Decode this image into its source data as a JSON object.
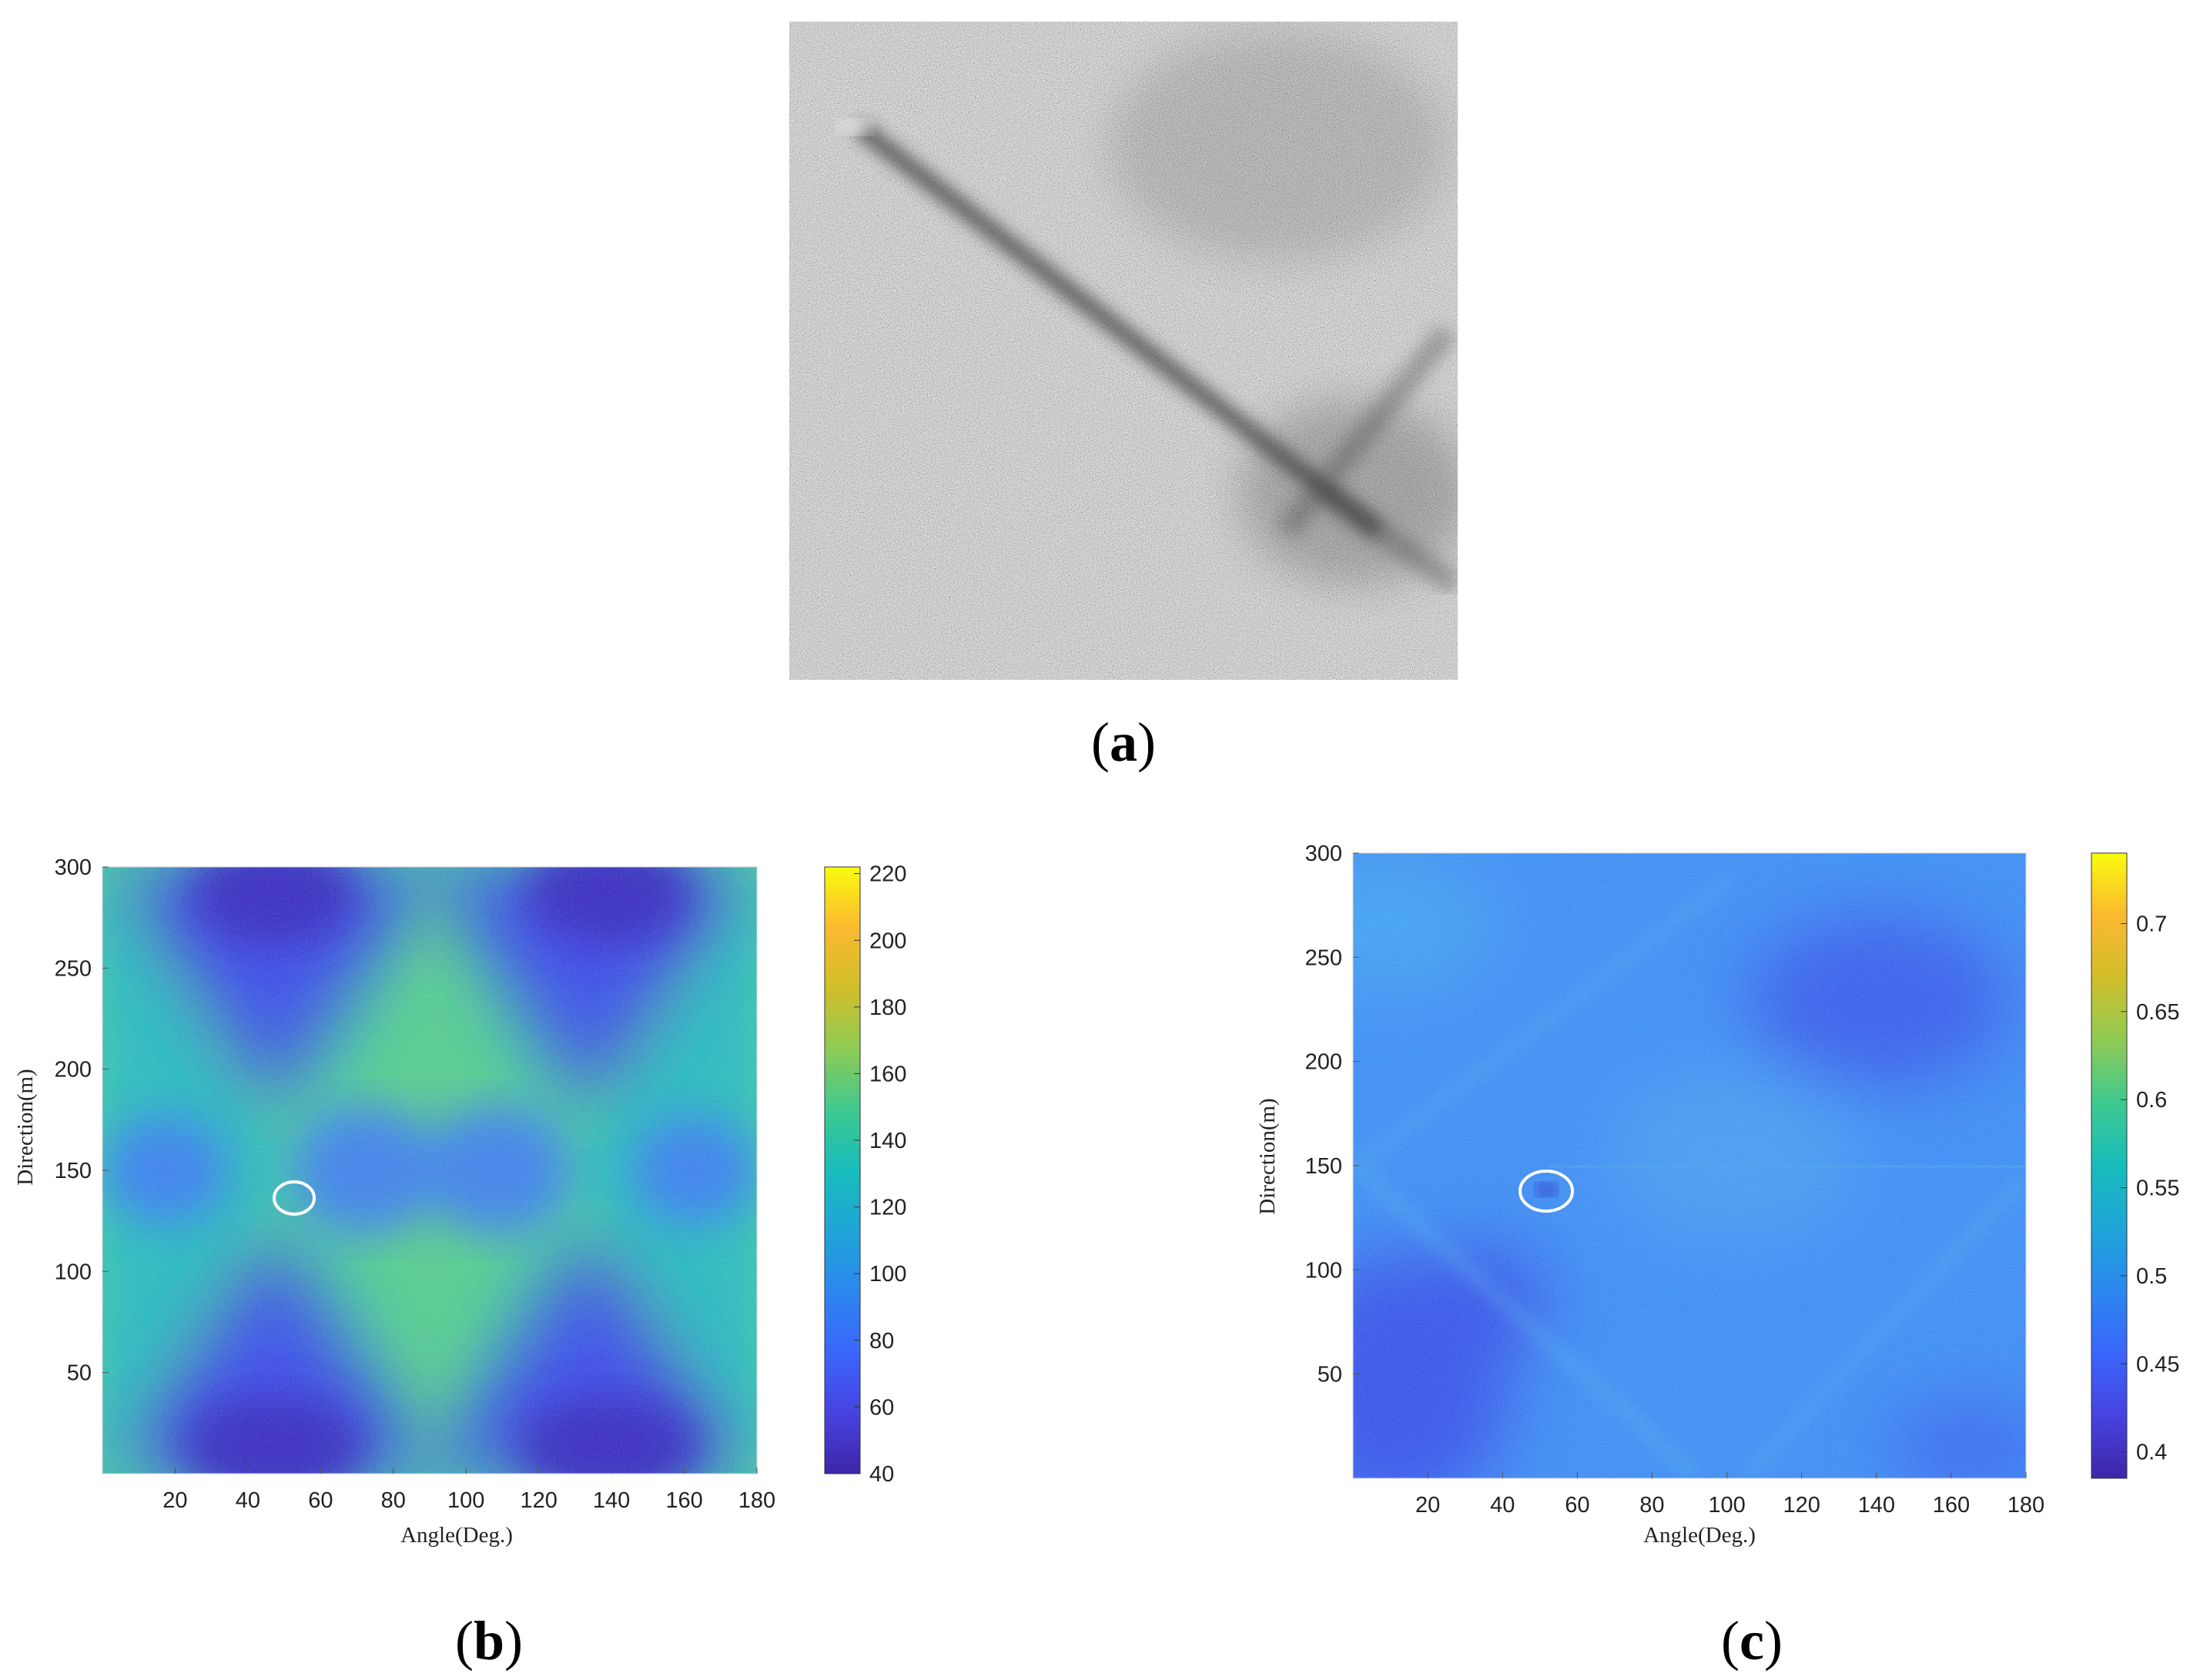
{
  "panels": {
    "a": {
      "label_open": "(",
      "label_letter": "a",
      "label_close": ")"
    },
    "b": {
      "label_open": "(",
      "label_letter": "b",
      "label_close": ")"
    },
    "c": {
      "label_open": "(",
      "label_letter": "c",
      "label_close": ")"
    }
  },
  "chart_data": [
    {
      "type": "heatmap",
      "panel": "b",
      "title": "",
      "xlabel": "Angle(Deg.)",
      "ylabel": "Direction(m)",
      "xlim": [
        0,
        180
      ],
      "ylim": [
        0,
        300
      ],
      "xticks": [
        20,
        40,
        60,
        80,
        100,
        120,
        140,
        160,
        180
      ],
      "yticks": [
        50,
        100,
        150,
        200,
        250,
        300
      ],
      "colorbar": {
        "min": 40,
        "max": 222,
        "ticks": [
          40,
          60,
          80,
          100,
          120,
          140,
          160,
          180,
          200,
          220
        ]
      },
      "colormap": "parula",
      "annotations": [
        {
          "shape": "ellipse",
          "x": 52,
          "y": 137,
          "color": "#ffffff"
        }
      ]
    },
    {
      "type": "heatmap",
      "panel": "c",
      "title": "",
      "xlabel": "Angle(Deg.)",
      "ylabel": "Direction(m)",
      "xlim": [
        0,
        180
      ],
      "ylim": [
        0,
        300
      ],
      "xticks": [
        20,
        40,
        60,
        80,
        100,
        120,
        140,
        160,
        180
      ],
      "yticks": [
        50,
        100,
        150,
        200,
        250,
        300
      ],
      "colorbar": {
        "min": 0.385,
        "max": 0.74,
        "ticks": [
          0.4,
          0.45,
          0.5,
          0.55,
          0.6,
          0.65,
          0.7
        ]
      },
      "colormap": "parula",
      "annotations": [
        {
          "shape": "ellipse",
          "x": 52,
          "y": 138,
          "color": "#ffffff"
        }
      ]
    }
  ],
  "colors": {
    "parula": [
      "#3e26a8",
      "#4743e0",
      "#3a66fb",
      "#2c87ef",
      "#1fa5d8",
      "#18bcbc",
      "#3ec98f",
      "#8ecb54",
      "#d1be2a",
      "#fbb930",
      "#f7df1a",
      "#f9fb0e"
    ]
  }
}
